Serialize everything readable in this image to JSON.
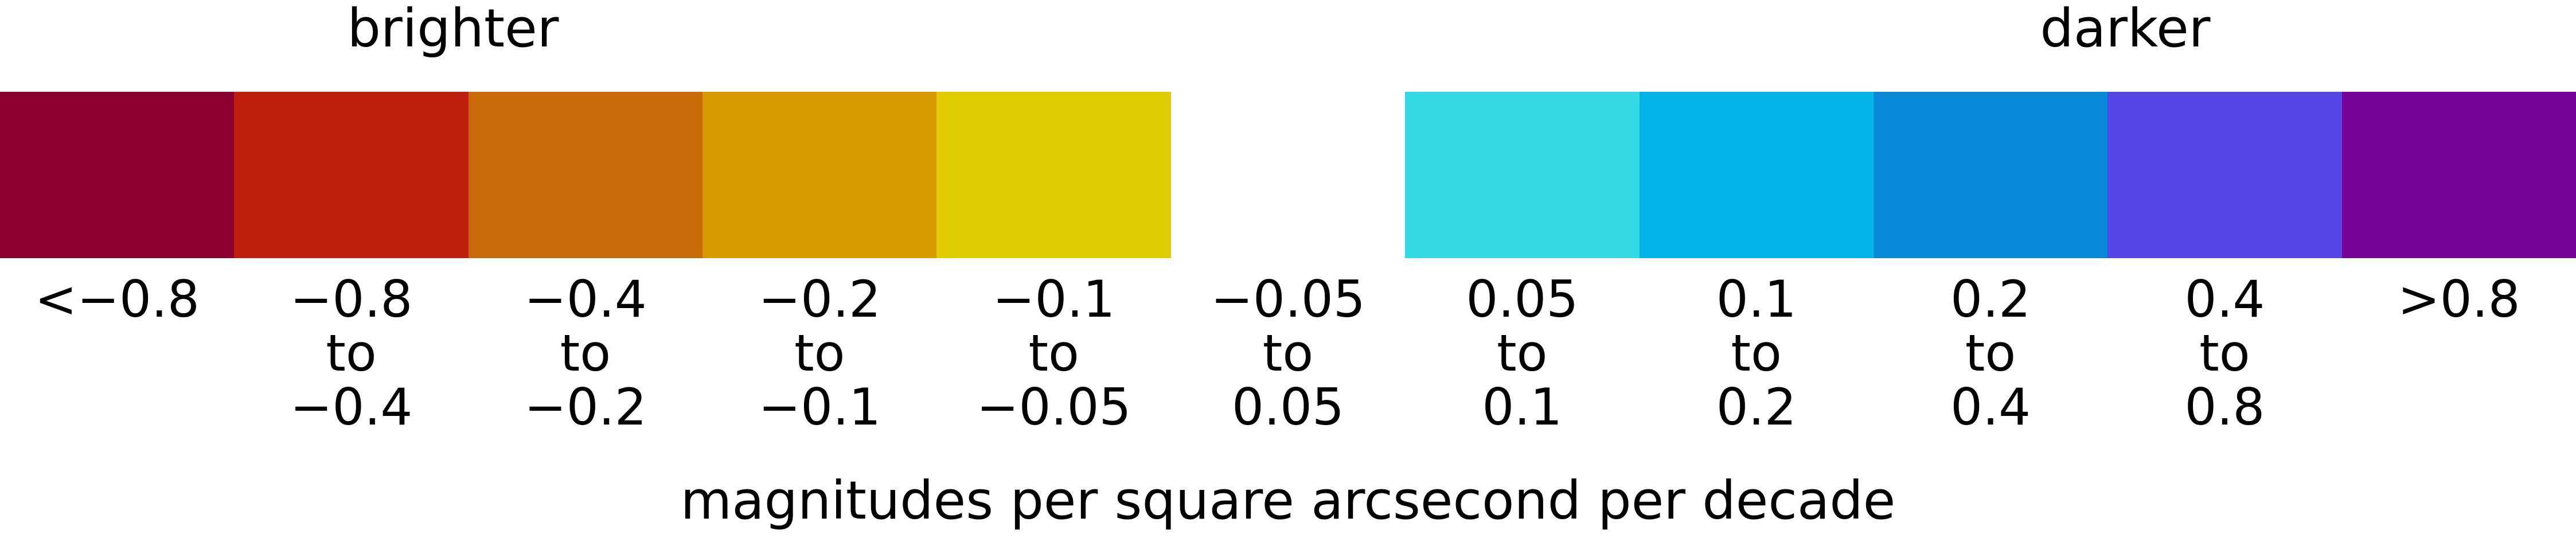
{
  "headings": {
    "left": "brighter",
    "right": "darker"
  },
  "unit_label": "magnitudes per square arcsecond per decade",
  "chart_data": {
    "type": "color-legend",
    "title": "",
    "xlabel": "magnitudes per square arcsecond per decade",
    "ylabel": "",
    "direction_labels": [
      "brighter",
      "darker"
    ],
    "bins": [
      {
        "label_lines": [
          "<−0.8"
        ],
        "color": "#8B0031",
        "range": [
          null,
          -0.8
        ]
      },
      {
        "label_lines": [
          "−0.8",
          "to",
          "−0.4"
        ],
        "color": "#BE1E0D",
        "range": [
          -0.8,
          -0.4
        ]
      },
      {
        "label_lines": [
          "−0.4",
          "to",
          "−0.2"
        ],
        "color": "#C86A08",
        "range": [
          -0.4,
          -0.2
        ]
      },
      {
        "label_lines": [
          "−0.2",
          "to",
          "−0.1"
        ],
        "color": "#D69900",
        "range": [
          -0.2,
          -0.1
        ]
      },
      {
        "label_lines": [
          "−0.1",
          "to",
          "−0.05"
        ],
        "color": "#E0CC00",
        "range": [
          -0.1,
          -0.05
        ]
      },
      {
        "label_lines": [
          "−0.05",
          "to",
          "0.05"
        ],
        "color": "#FFFFFF",
        "range": [
          -0.05,
          0.05
        ]
      },
      {
        "label_lines": [
          "0.05",
          "to",
          "0.1"
        ],
        "color": "#35D9E5",
        "range": [
          0.05,
          0.1
        ]
      },
      {
        "label_lines": [
          "0.1",
          "to",
          "0.2"
        ],
        "color": "#04B4E8",
        "range": [
          0.1,
          0.2
        ]
      },
      {
        "label_lines": [
          "0.2",
          "to",
          "0.4"
        ],
        "color": "#0A88D8",
        "range": [
          0.2,
          0.4
        ]
      },
      {
        "label_lines": [
          "0.4",
          "to",
          "0.8"
        ],
        "color": "#5845E8",
        "range": [
          0.4,
          0.8
        ]
      },
      {
        "label_lines": [
          ">0.8"
        ],
        "color": "#780398",
        "range": [
          0.8,
          null
        ]
      }
    ]
  }
}
